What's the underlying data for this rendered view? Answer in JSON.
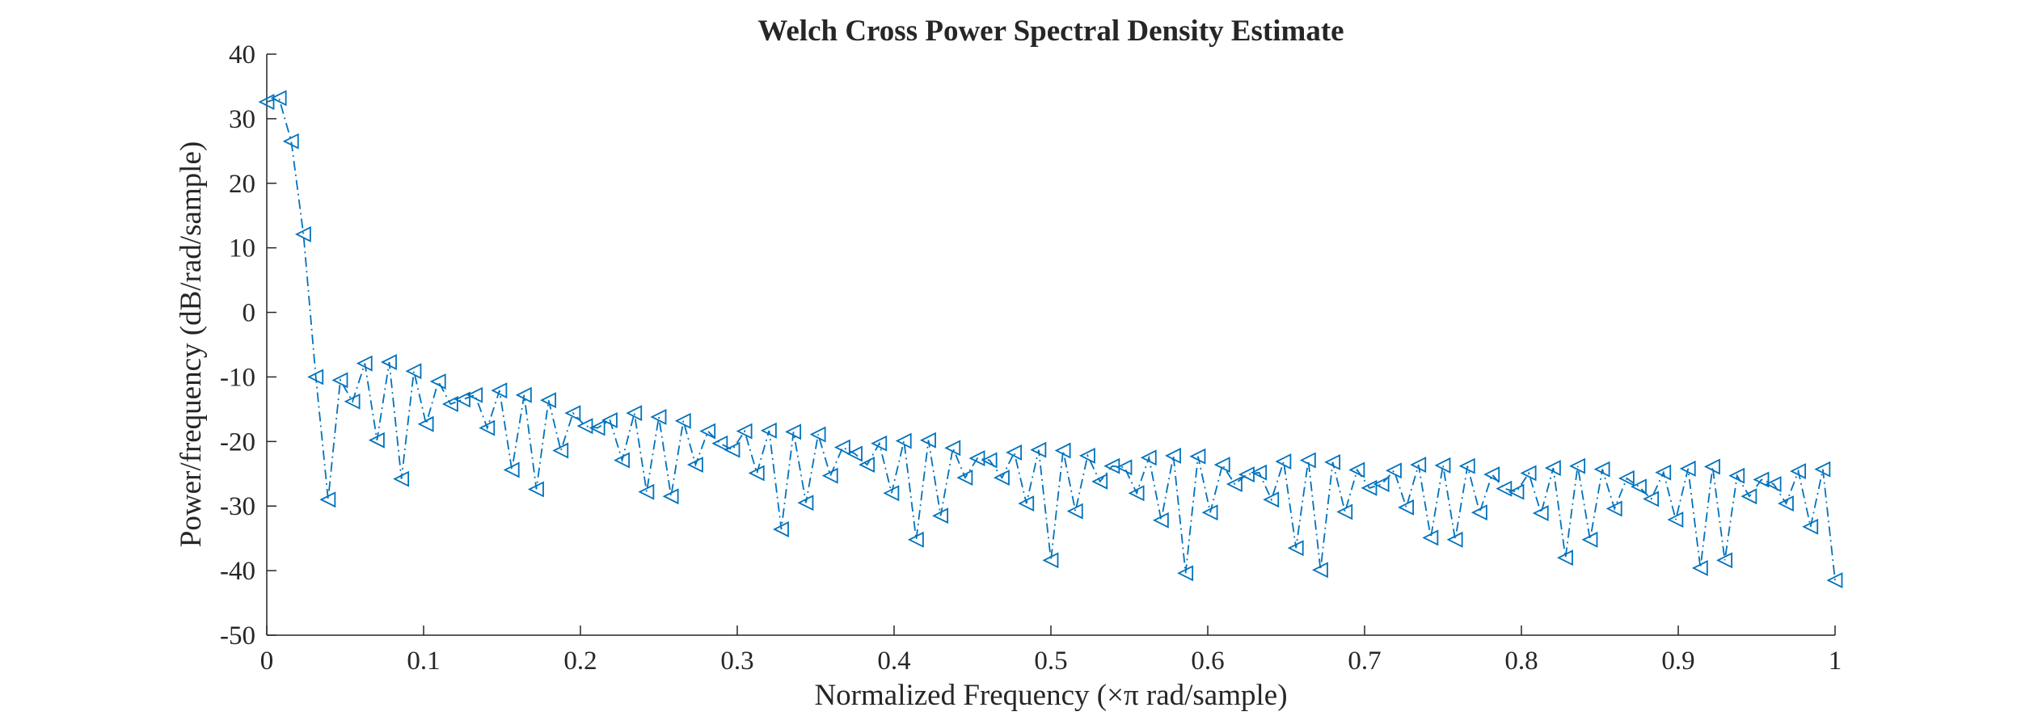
{
  "chart_data": {
    "type": "line",
    "title": "Welch Cross Power Spectral Density Estimate",
    "xlabel": "Normalized Frequency  (×π rad/sample)",
    "ylabel": "Power/frequency (dB/rad/sample)",
    "xlim": [
      0,
      1
    ],
    "ylim": [
      -50,
      40
    ],
    "xticks": [
      0,
      0.1,
      0.2,
      0.3,
      0.4,
      0.5,
      0.6,
      0.7,
      0.8,
      0.9,
      1
    ],
    "xtick_labels": [
      "0",
      "0.1",
      "0.2",
      "0.3",
      "0.4",
      "0.5",
      "0.6",
      "0.7",
      "0.8",
      "0.9",
      "1"
    ],
    "yticks": [
      40,
      30,
      20,
      10,
      0,
      -10,
      -20,
      -30,
      -40,
      -50
    ],
    "ytick_labels": [
      "40",
      "30",
      "20",
      "10",
      "0",
      "-10",
      "-20",
      "-30",
      "-40",
      "-50"
    ],
    "grid": false,
    "line_style": "dash-dot",
    "marker": "left-pointing triangle",
    "series_color": "#0072BD",
    "axis_color": "#262626",
    "series": [
      {
        "x": [
          0,
          0.0078,
          0.0156,
          0.0234,
          0.0313,
          0.0391,
          0.0469,
          0.0547,
          0.0625,
          0.0703,
          0.0781,
          0.0859,
          0.0938,
          0.1016,
          0.1094,
          0.1172,
          0.125,
          0.1328,
          0.1406,
          0.1484,
          0.1563,
          0.1641,
          0.1719,
          0.1797,
          0.1875,
          0.1953,
          0.2031,
          0.2109,
          0.2188,
          0.2266,
          0.2344,
          0.2422,
          0.25,
          0.2578,
          0.2656,
          0.2734,
          0.2813,
          0.2891,
          0.2969,
          0.3047,
          0.3125,
          0.3203,
          0.3281,
          0.3359,
          0.3438,
          0.3516,
          0.3594,
          0.3672,
          0.375,
          0.3828,
          0.3906,
          0.3984,
          0.4063,
          0.4141,
          0.4219,
          0.4297,
          0.4375,
          0.4453,
          0.4531,
          0.4609,
          0.4688,
          0.4766,
          0.4844,
          0.4922,
          0.5,
          0.5078,
          0.5156,
          0.5234,
          0.5313,
          0.5391,
          0.5469,
          0.5547,
          0.5625,
          0.5703,
          0.5781,
          0.5859,
          0.5938,
          0.6016,
          0.6094,
          0.6172,
          0.625,
          0.6328,
          0.6406,
          0.6484,
          0.6563,
          0.6641,
          0.6719,
          0.6797,
          0.6875,
          0.6953,
          0.7031,
          0.7109,
          0.7188,
          0.7266,
          0.7344,
          0.7422,
          0.75,
          0.7578,
          0.7656,
          0.7734,
          0.7813,
          0.7891,
          0.7969,
          0.8047,
          0.8125,
          0.8203,
          0.8281,
          0.8359,
          0.8438,
          0.8516,
          0.8594,
          0.8672,
          0.875,
          0.8828,
          0.8906,
          0.8984,
          0.9063,
          0.9141,
          0.9219,
          0.9297,
          0.9375,
          0.9453,
          0.9531,
          0.9609,
          0.9688,
          0.9766,
          0.9844,
          0.9922,
          1
        ],
        "y": [
          32.6,
          33.2,
          26.5,
          12.1,
          -10.0,
          -29.0,
          -10.5,
          -13.8,
          -7.9,
          -19.8,
          -7.7,
          -25.8,
          -9.1,
          -17.3,
          -10.7,
          -14.2,
          -13.5,
          -12.8,
          -17.9,
          -12.1,
          -24.4,
          -12.8,
          -27.4,
          -13.6,
          -21.4,
          -15.6,
          -17.6,
          -17.9,
          -16.7,
          -22.9,
          -15.6,
          -27.8,
          -16.2,
          -28.5,
          -16.8,
          -23.6,
          -18.4,
          -20.3,
          -21.3,
          -18.4,
          -24.9,
          -18.3,
          -33.6,
          -18.5,
          -29.5,
          -18.9,
          -25.3,
          -20.9,
          -21.9,
          -23.6,
          -20.3,
          -28.0,
          -19.9,
          -35.2,
          -19.8,
          -31.5,
          -21.0,
          -25.6,
          -22.6,
          -22.9,
          -25.6,
          -21.7,
          -29.6,
          -21.3,
          -38.4,
          -21.4,
          -30.8,
          -22.2,
          -26.2,
          -23.8,
          -24.0,
          -28.0,
          -22.5,
          -32.2,
          -22.2,
          -40.4,
          -22.3,
          -31.0,
          -23.6,
          -26.6,
          -25.1,
          -24.8,
          -29.0,
          -23.1,
          -36.5,
          -22.9,
          -39.9,
          -23.2,
          -30.9,
          -24.4,
          -27.2,
          -26.6,
          -24.5,
          -30.2,
          -23.6,
          -34.9,
          -23.7,
          -35.2,
          -23.8,
          -31.0,
          -25.1,
          -27.3,
          -27.8,
          -24.9,
          -31.1,
          -24.1,
          -38.0,
          -23.8,
          -35.2,
          -24.3,
          -30.4,
          -25.7,
          -27.0,
          -28.9,
          -24.8,
          -32.1,
          -24.2,
          -39.6,
          -23.9,
          -38.4,
          -25.3,
          -28.5,
          -25.9,
          -26.6,
          -29.6,
          -24.6,
          -33.2,
          -24.3,
          -41.5
        ]
      }
    ]
  }
}
